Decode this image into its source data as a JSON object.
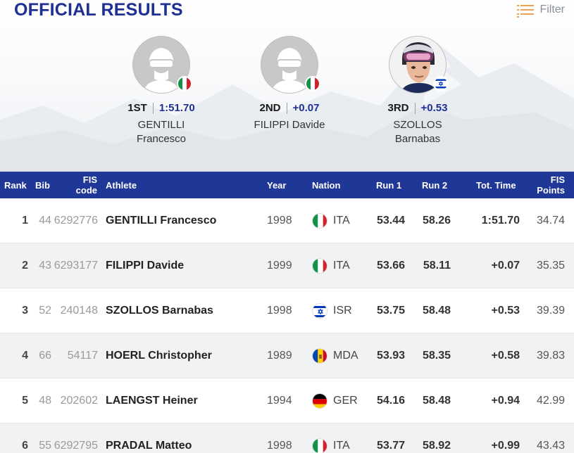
{
  "title": "OFFICIAL RESULTS",
  "filter_label": "Filter",
  "colors": {
    "primary": "#1e3094",
    "header_bg": "#1f3796",
    "accent": "#f0a050"
  },
  "podium": [
    {
      "place": "1ST",
      "time": "1:51.70",
      "last": "GENTILLI",
      "first": "Francesco",
      "flag": "flag-italy-icon",
      "photo": false
    },
    {
      "place": "2ND",
      "time": "+0.07",
      "last": "FILIPPI Davide",
      "first": "",
      "flag": "flag-italy-icon",
      "photo": false
    },
    {
      "place": "3RD",
      "time": "+0.53",
      "last": "SZOLLOS",
      "first": "Barnabas",
      "flag": "flag-israel-icon",
      "photo": true
    }
  ],
  "columns": {
    "rank": "Rank",
    "bib": "Bib",
    "fis_a": "FIS",
    "fis_b": "code",
    "athlete": "Athlete",
    "year": "Year",
    "nation": "Nation",
    "run1": "Run 1",
    "run2": "Run 2",
    "tot": "Tot. Time",
    "pts_a": "FIS",
    "pts_b": "Points"
  },
  "rows": [
    {
      "rank": "1",
      "bib": "44",
      "fis": "6292776",
      "athlete": "GENTILLI Francesco",
      "year": "1998",
      "nation": "ITA",
      "flag": "ita",
      "run1": "53.44",
      "run2": "58.26",
      "tot": "1:51.70",
      "pts": "34.74"
    },
    {
      "rank": "2",
      "bib": "43",
      "fis": "6293177",
      "athlete": "FILIPPI Davide",
      "year": "1999",
      "nation": "ITA",
      "flag": "ita",
      "run1": "53.66",
      "run2": "58.11",
      "tot": "+0.07",
      "pts": "35.35"
    },
    {
      "rank": "3",
      "bib": "52",
      "fis": "240148",
      "athlete": "SZOLLOS Barnabas",
      "year": "1998",
      "nation": "ISR",
      "flag": "isr",
      "run1": "53.75",
      "run2": "58.48",
      "tot": "+0.53",
      "pts": "39.39"
    },
    {
      "rank": "4",
      "bib": "66",
      "fis": "54117",
      "athlete": "HOERL Christopher",
      "year": "1989",
      "nation": "MDA",
      "flag": "mda",
      "run1": "53.93",
      "run2": "58.35",
      "tot": "+0.58",
      "pts": "39.83"
    },
    {
      "rank": "5",
      "bib": "48",
      "fis": "202602",
      "athlete": "LAENGST Heiner",
      "year": "1994",
      "nation": "GER",
      "flag": "ger",
      "run1": "54.16",
      "run2": "58.48",
      "tot": "+0.94",
      "pts": "42.99"
    },
    {
      "rank": "6",
      "bib": "55",
      "fis": "6292795",
      "athlete": "PRADAL Matteo",
      "year": "1998",
      "nation": "ITA",
      "flag": "ita",
      "run1": "53.77",
      "run2": "58.92",
      "tot": "+0.99",
      "pts": "43.43"
    }
  ]
}
